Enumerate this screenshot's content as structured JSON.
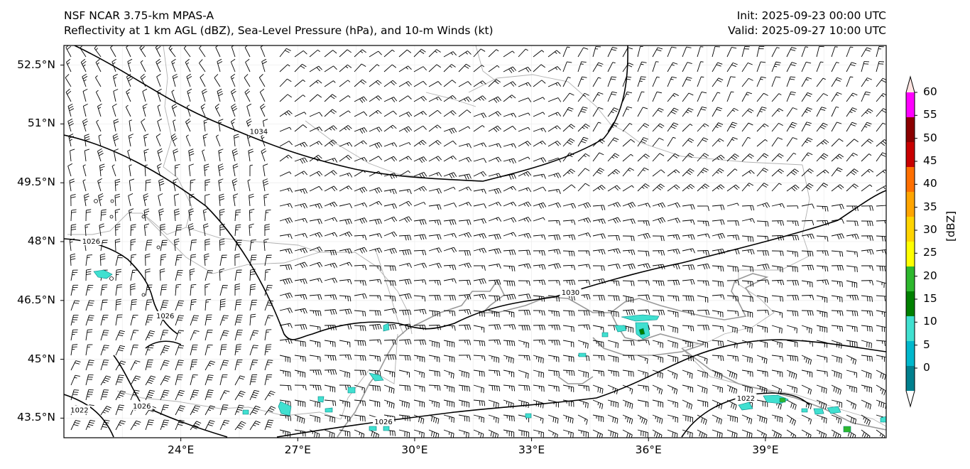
{
  "header": {
    "title_line1": "NSF NCAR 3.75-km MPAS-A",
    "title_line2": "Reflectivity at 1 km AGL (dBZ), Sea-Level Pressure (hPa), and 10-m Winds (kt)",
    "init": "Init: 2025-09-23 00:00 UTC",
    "valid": "Valid: 2025-09-27 10:00 UTC"
  },
  "map": {
    "lon_range": [
      21,
      42.1
    ],
    "lat_range": [
      43,
      53
    ],
    "lat_ticks": [
      {
        "value": 52.5,
        "label": "52.5°N"
      },
      {
        "value": 51,
        "label": "51°N"
      },
      {
        "value": 49.5,
        "label": "49.5°N"
      },
      {
        "value": 48,
        "label": "48°N"
      },
      {
        "value": 46.5,
        "label": "46.5°N"
      },
      {
        "value": 45,
        "label": "45°N"
      },
      {
        "value": 43.5,
        "label": "43.5°N"
      }
    ],
    "lon_ticks": [
      {
        "value": 24,
        "label": "24°E"
      },
      {
        "value": 27,
        "label": "27°E"
      },
      {
        "value": 30,
        "label": "30°E"
      },
      {
        "value": 33,
        "label": "33°E"
      },
      {
        "value": 36,
        "label": "36°E"
      },
      {
        "value": 39,
        "label": "39°E"
      }
    ],
    "isobar_labels": [
      {
        "text": "1034",
        "lon": 26.0,
        "lat": 50.8
      },
      {
        "text": "1030",
        "lon": 34.0,
        "lat": 46.7
      },
      {
        "text": "1026",
        "lon": 21.7,
        "lat": 48.0
      },
      {
        "text": "1026",
        "lon": 23.6,
        "lat": 46.1
      },
      {
        "text": "1026",
        "lon": 23.0,
        "lat": 43.8
      },
      {
        "text": "1026",
        "lon": 29.2,
        "lat": 43.4
      },
      {
        "text": "1022",
        "lon": 38.5,
        "lat": 44.0
      },
      {
        "text": "1022",
        "lon": 21.4,
        "lat": 43.7
      }
    ]
  },
  "colorbar": {
    "title": "[dBZ]",
    "ticks": [
      "0",
      "5",
      "10",
      "15",
      "20",
      "25",
      "30",
      "35",
      "40",
      "45",
      "50",
      "55",
      "60"
    ],
    "colors": [
      "#ffffff",
      "#00808e",
      "#00b8cc",
      "#40e0d0",
      "#008000",
      "#2db82d",
      "#ffff00",
      "#ffd400",
      "#ffa500",
      "#ff6f00",
      "#c80000",
      "#8b0000",
      "#ff00ff",
      "#ffe4e1"
    ]
  }
}
